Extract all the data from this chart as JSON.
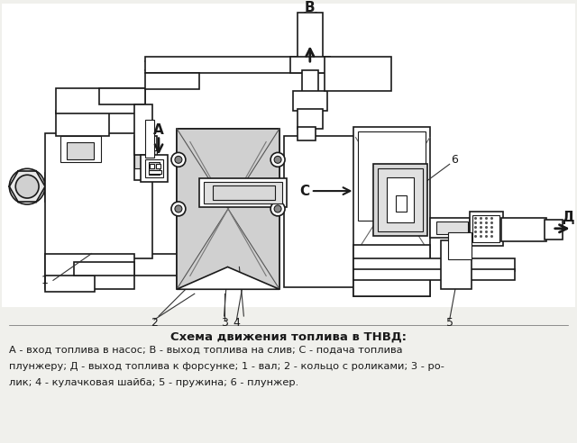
{
  "title": "Схема движения топлива в ТНВД:",
  "caption_line1": "А - вход топлива в насос; В - выход топлива на слив; С - подача топлива",
  "caption_line2": "плунжеру; Д - выход топлива к форсунке; 1 - вал; 2 - кольцо с роликами; 3 - ро-",
  "caption_line3": "лик; 4 - кулачковая шайба; 5 - пружина; 6 - плунжер.",
  "bg_color": "#f0f0ec",
  "line_color": "#1a1a1a",
  "fig_width": 6.4,
  "fig_height": 4.92,
  "dpi": 100
}
